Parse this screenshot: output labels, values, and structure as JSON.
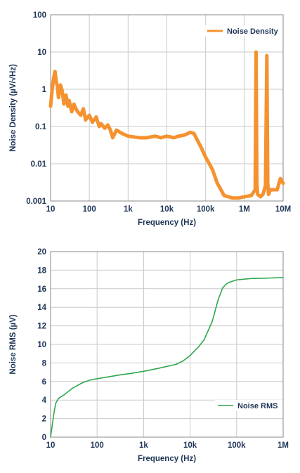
{
  "chart_data": [
    {
      "type": "line",
      "xlabel": "Frequency (Hz)",
      "ylabel": "Noise Density (µV/√Hz)",
      "x_scale": "log",
      "y_scale": "log",
      "xlim": [
        10,
        10000000
      ],
      "ylim": [
        0.001,
        100
      ],
      "x_ticks": [
        "10",
        "100",
        "1k",
        "10k",
        "100k",
        "1M",
        "10M"
      ],
      "y_ticks": [
        "0.001",
        "0.01",
        "0.1",
        "1",
        "10",
        "100"
      ],
      "grid": true,
      "legend_position": "top-right",
      "series": [
        {
          "name": "Noise Density",
          "color": "#f5922f",
          "x": [
            10,
            11,
            12,
            13,
            14,
            15,
            16,
            18,
            20,
            22,
            25,
            28,
            30,
            35,
            40,
            45,
            50,
            60,
            70,
            80,
            100,
            120,
            150,
            180,
            200,
            250,
            300,
            350,
            400,
            500,
            700,
            1000,
            1500,
            2000,
            3000,
            5000,
            7000,
            10000,
            15000,
            20000,
            30000,
            40000,
            50000,
            60000,
            80000,
            100000,
            150000,
            200000,
            300000,
            500000,
            700000,
            1000000,
            1500000,
            1900000,
            2000000,
            2100000,
            2200000,
            2600000,
            3000000,
            3500000,
            3800000,
            4000000,
            4200000,
            4700000,
            5500000,
            7000000,
            8500000,
            10000000
          ],
          "y": [
            0.35,
            1.0,
            2.0,
            3.0,
            1.6,
            1.2,
            0.6,
            1.3,
            0.9,
            0.4,
            0.7,
            0.35,
            0.5,
            0.25,
            0.4,
            0.3,
            0.25,
            0.2,
            0.3,
            0.15,
            0.2,
            0.13,
            0.18,
            0.1,
            0.12,
            0.09,
            0.11,
            0.08,
            0.05,
            0.08,
            0.065,
            0.055,
            0.052,
            0.05,
            0.05,
            0.055,
            0.05,
            0.055,
            0.05,
            0.055,
            0.06,
            0.07,
            0.065,
            0.045,
            0.025,
            0.015,
            0.007,
            0.003,
            0.0014,
            0.0012,
            0.0012,
            0.0013,
            0.0014,
            0.002,
            10.0,
            0.003,
            0.0015,
            0.0013,
            0.0015,
            0.0025,
            8.0,
            0.003,
            0.0015,
            0.002,
            0.002,
            0.002,
            0.004,
            0.003
          ]
        }
      ]
    },
    {
      "type": "line",
      "xlabel": "Frequency (Hz)",
      "ylabel": "Noise RMS (µV)",
      "x_scale": "log",
      "y_scale": "linear",
      "xlim": [
        10,
        1000000
      ],
      "ylim": [
        0,
        20
      ],
      "x_ticks": [
        "10",
        "100",
        "1k",
        "10k",
        "100k",
        "1M"
      ],
      "y_ticks": [
        "0",
        "2",
        "4",
        "6",
        "8",
        "10",
        "12",
        "14",
        "16",
        "18",
        "20"
      ],
      "grid": true,
      "legend_position": "bottom-right",
      "series": [
        {
          "name": "Noise RMS",
          "color": "#2ea84f",
          "x": [
            10,
            11,
            12,
            13,
            15,
            20,
            30,
            50,
            70,
            100,
            200,
            300,
            500,
            1000,
            2000,
            3000,
            5000,
            7000,
            10000,
            15000,
            20000,
            30000,
            40000,
            50000,
            60000,
            70000,
            100000,
            200000,
            500000,
            1000000
          ],
          "y": [
            0,
            1.5,
            2.8,
            3.7,
            4.2,
            4.6,
            5.3,
            5.9,
            6.15,
            6.3,
            6.55,
            6.7,
            6.85,
            7.1,
            7.4,
            7.6,
            7.85,
            8.2,
            8.8,
            9.7,
            10.5,
            12.5,
            14.8,
            16.1,
            16.5,
            16.7,
            16.95,
            17.1,
            17.15,
            17.2
          ]
        }
      ]
    }
  ]
}
